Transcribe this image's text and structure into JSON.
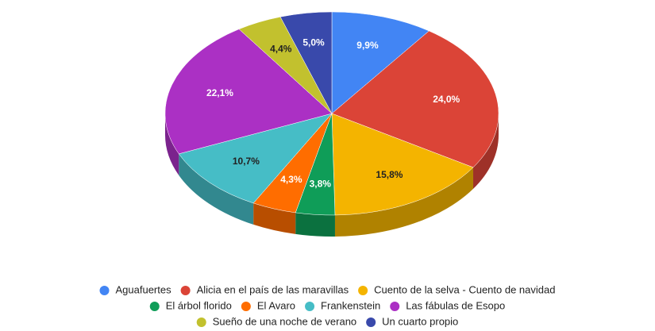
{
  "chart_data": {
    "type": "pie3d",
    "categories": [
      "Aguafuertes",
      "Alicia en el país de las maravillas",
      "Cuento de la selva - Cuento de navidad",
      "El árbol florido",
      "El Avaro",
      "Frankenstein",
      "Las fábulas de Esopo",
      "Sueño de una noche de verano",
      "Un cuarto propio"
    ],
    "values": [
      9.9,
      24.0,
      15.8,
      3.8,
      4.3,
      10.7,
      22.1,
      4.4,
      5.0
    ],
    "value_labels": [
      "9,9%",
      "24,0%",
      "15,8%",
      "3,8%",
      "4,3%",
      "10,7%",
      "22,1%",
      "4,4%",
      "5,0%"
    ],
    "colors": [
      "#4285f4",
      "#db4437",
      "#f4b400",
      "#0f9d58",
      "#ff6d00",
      "#46bdc6",
      "#ab30c4",
      "#c2c12e",
      "#3949ab"
    ],
    "legend": "bottom"
  }
}
